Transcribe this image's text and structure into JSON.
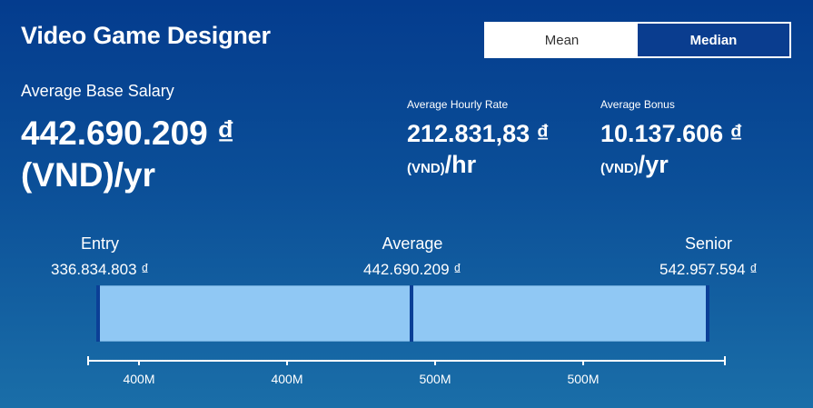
{
  "header": {
    "title": "Video Game Designer",
    "toggle": {
      "mean_label": "Mean",
      "median_label": "Median",
      "selected": "Median"
    }
  },
  "base_salary": {
    "label": "Average Base Salary",
    "amount": "442.690.209 ₫",
    "unit": "(VND)/yr"
  },
  "hourly_rate": {
    "label": "Average Hourly Rate",
    "amount": "212.831,83 ₫",
    "currency_unit": "(VND)",
    "period": "/hr"
  },
  "bonus": {
    "label": "Average Bonus",
    "amount": "10.137.606 ₫",
    "currency_unit": "(VND)",
    "period": "/yr"
  },
  "range": {
    "entry_label": "Entry",
    "entry_value": "336.834.803 ₫",
    "average_label": "Average",
    "average_value": "442.690.209 ₫",
    "senior_label": "Senior",
    "senior_value": "542.957.594 ₫"
  },
  "axis": {
    "ticks": [
      "400M",
      "400M",
      "500M",
      "500M"
    ]
  },
  "colors": {
    "background_top": "#043c8e",
    "background_bottom": "#1a6ea8",
    "bar_fill": "#90c8f4",
    "bar_marker": "#0b3f96"
  }
}
